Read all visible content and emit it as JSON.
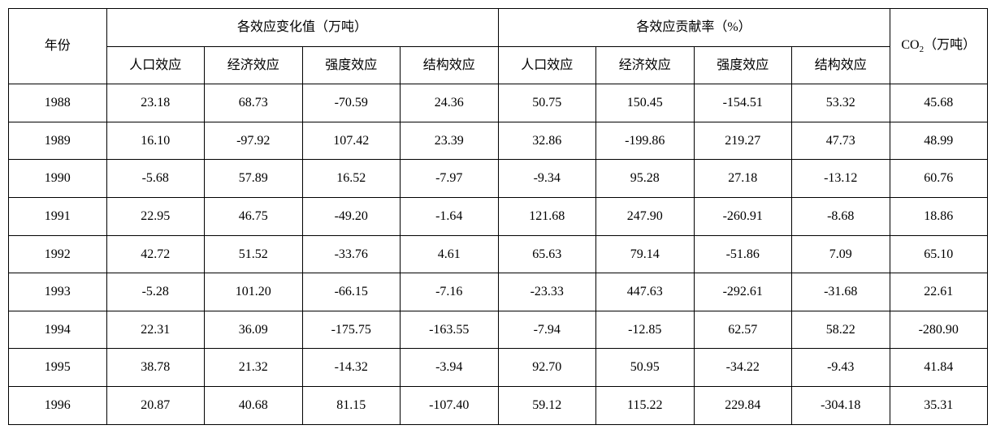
{
  "table": {
    "type": "table",
    "background_color": "#ffffff",
    "border_color": "#000000",
    "text_color": "#000000",
    "font_family": "SimSun",
    "header_fontsize": 16,
    "cell_fontsize": 16,
    "header": {
      "year": "年份",
      "group1": "各效应变化值（万吨）",
      "group2": "各效应贡献率（%）",
      "co2_prefix": "CO",
      "co2_sub": "2",
      "co2_suffix": "（万吨）",
      "sub1": "人口效应",
      "sub2": "经济效应",
      "sub3": "强度效应",
      "sub4": "结构效应",
      "sub5": "人口效应",
      "sub6": "经济效应",
      "sub7": "强度效应",
      "sub8": "结构效应"
    },
    "columns": [
      "年份",
      "人口效应",
      "经济效应",
      "强度效应",
      "结构效应",
      "人口效应",
      "经济效应",
      "强度效应",
      "结构效应",
      "CO2（万吨）"
    ],
    "column_widths_pct": [
      8.2,
      10.2,
      10.2,
      10.2,
      10.2,
      10.2,
      10.2,
      10.2,
      10.2,
      10.2
    ],
    "rows": [
      [
        "1988",
        "23.18",
        "68.73",
        "-70.59",
        "24.36",
        "50.75",
        "150.45",
        "-154.51",
        "53.32",
        "45.68"
      ],
      [
        "1989",
        "16.10",
        "-97.92",
        "107.42",
        "23.39",
        "32.86",
        "-199.86",
        "219.27",
        "47.73",
        "48.99"
      ],
      [
        "1990",
        "-5.68",
        "57.89",
        "16.52",
        "-7.97",
        "-9.34",
        "95.28",
        "27.18",
        "-13.12",
        "60.76"
      ],
      [
        "1991",
        "22.95",
        "46.75",
        "-49.20",
        "-1.64",
        "121.68",
        "247.90",
        "-260.91",
        "-8.68",
        "18.86"
      ],
      [
        "1992",
        "42.72",
        "51.52",
        "-33.76",
        "4.61",
        "65.63",
        "79.14",
        "-51.86",
        "7.09",
        "65.10"
      ],
      [
        "1993",
        "-5.28",
        "101.20",
        "-66.15",
        "-7.16",
        "-23.33",
        "447.63",
        "-292.61",
        "-31.68",
        "22.61"
      ],
      [
        "1994",
        "22.31",
        "36.09",
        "-175.75",
        "-163.55",
        "-7.94",
        "-12.85",
        "62.57",
        "58.22",
        "-280.90"
      ],
      [
        "1995",
        "38.78",
        "21.32",
        "-14.32",
        "-3.94",
        "92.70",
        "50.95",
        "-34.22",
        "-9.43",
        "41.84"
      ],
      [
        "1996",
        "20.87",
        "40.68",
        "81.15",
        "-107.40",
        "59.12",
        "115.22",
        "229.84",
        "-304.18",
        "35.31"
      ]
    ]
  }
}
